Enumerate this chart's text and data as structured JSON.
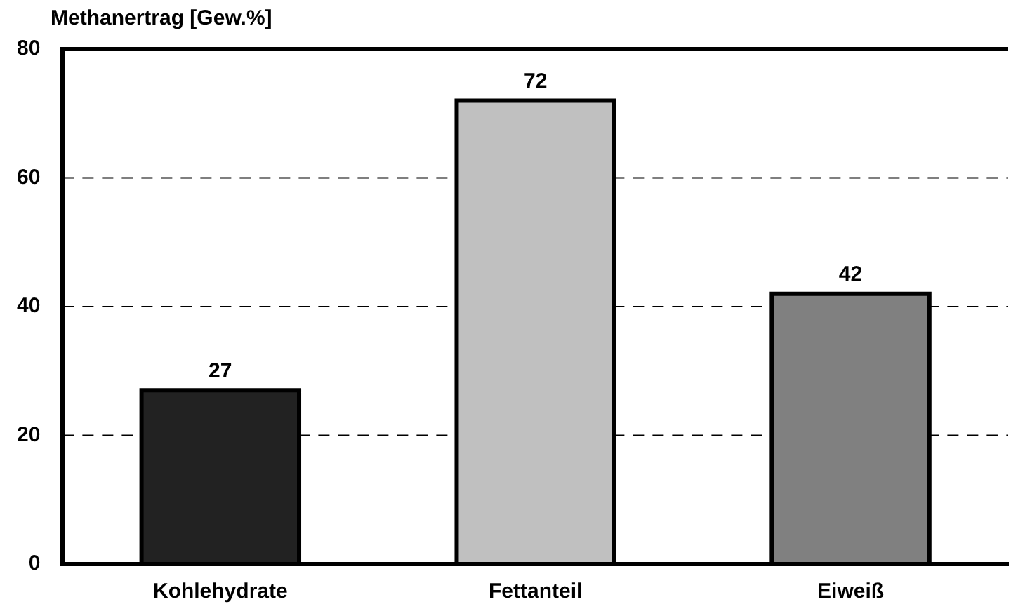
{
  "chart_data": {
    "type": "bar",
    "ylabel": "Methanertrag [Gew.%]",
    "categories": [
      "Kohlehydrate",
      "Fettanteil",
      "Eiweiß"
    ],
    "values": [
      27,
      72,
      42
    ],
    "colors": [
      "#222222",
      "#c0c0c0",
      "#808080"
    ],
    "ylim": [
      0,
      80
    ],
    "yticks": [
      0,
      20,
      40,
      60,
      80
    ],
    "grid": "y",
    "data_labels": true
  }
}
